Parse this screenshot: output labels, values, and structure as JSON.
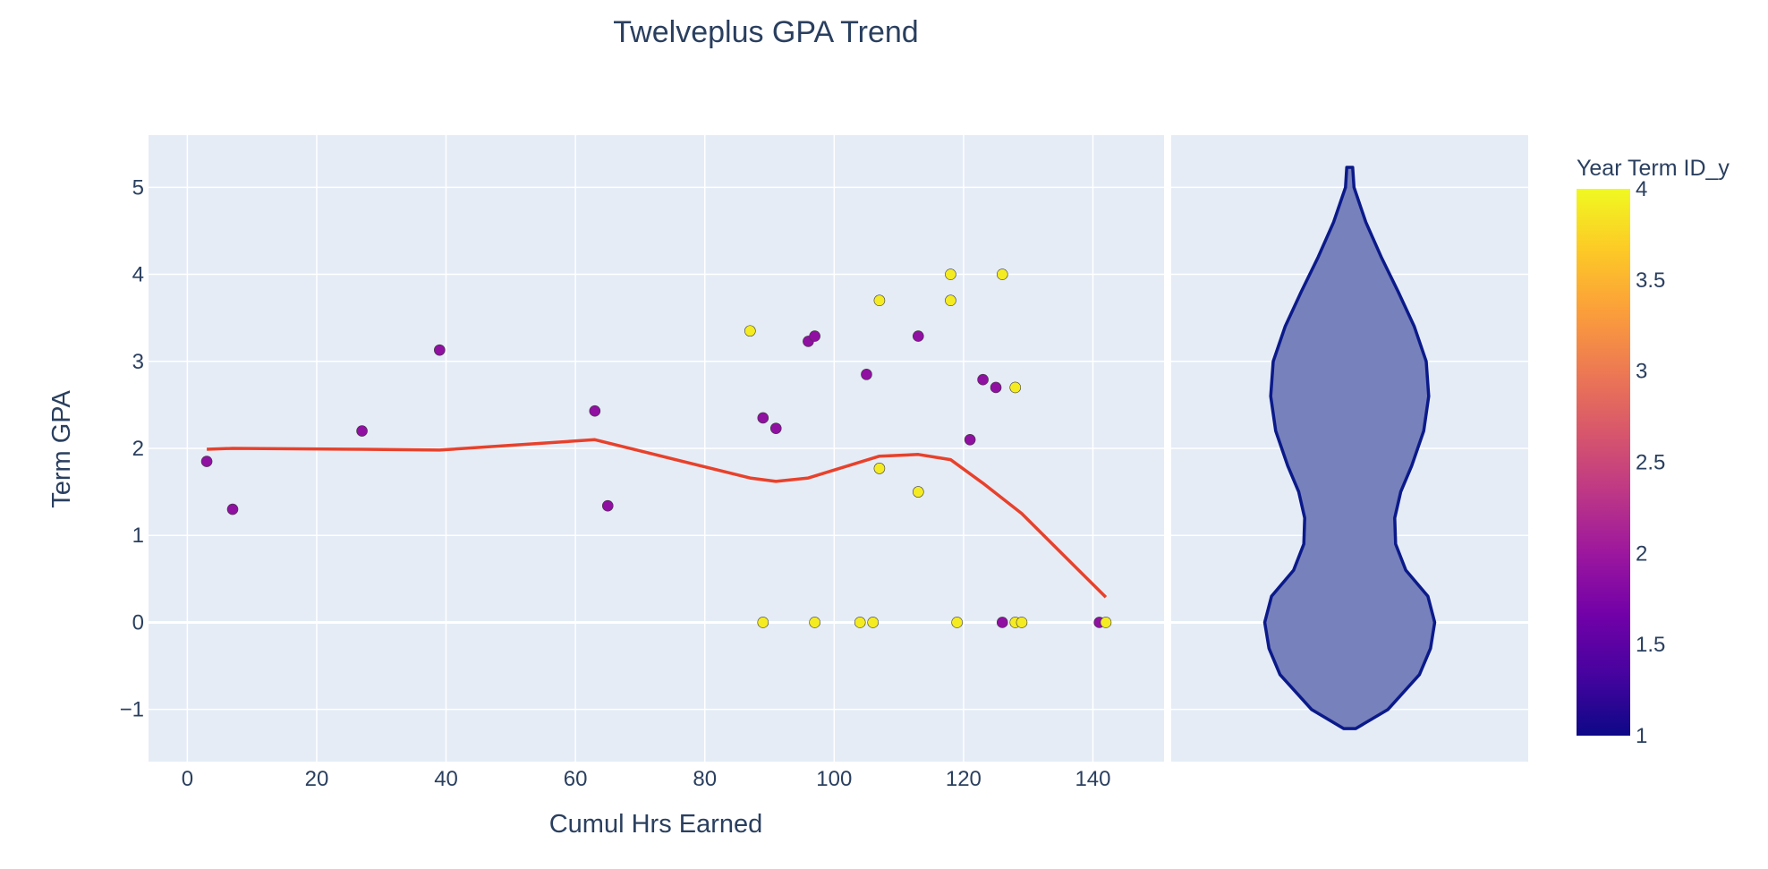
{
  "chart_data": {
    "type": "scatter",
    "title": "Twelveplus GPA Trend",
    "xlabel": "Cumul Hrs Earned",
    "ylabel": "Term GPA",
    "xlim": [
      -6,
      151
    ],
    "ylim": [
      -1.6,
      5.6
    ],
    "x_ticks": [
      0,
      20,
      40,
      60,
      80,
      100,
      120,
      140
    ],
    "y_ticks": [
      -1,
      0,
      1,
      2,
      3,
      4,
      5
    ],
    "x_tick_labels": [
      "0",
      "20",
      "40",
      "60",
      "80",
      "100",
      "120",
      "140"
    ],
    "y_tick_labels": [
      "−1",
      "0",
      "1",
      "2",
      "3",
      "4",
      "5"
    ],
    "grid": true,
    "points": [
      {
        "x": 3,
        "y": 1.85,
        "c": 1.9
      },
      {
        "x": 7,
        "y": 1.3,
        "c": 1.9
      },
      {
        "x": 27,
        "y": 2.2,
        "c": 1.9
      },
      {
        "x": 39,
        "y": 3.13,
        "c": 1.9
      },
      {
        "x": 63,
        "y": 2.43,
        "c": 1.9
      },
      {
        "x": 65,
        "y": 1.34,
        "c": 1.9
      },
      {
        "x": 87,
        "y": 3.35,
        "c": 3.9
      },
      {
        "x": 89,
        "y": 2.35,
        "c": 1.9
      },
      {
        "x": 91,
        "y": 2.23,
        "c": 1.9
      },
      {
        "x": 96,
        "y": 3.23,
        "c": 1.9
      },
      {
        "x": 97,
        "y": 3.29,
        "c": 1.9
      },
      {
        "x": 105,
        "y": 2.85,
        "c": 1.9
      },
      {
        "x": 107,
        "y": 3.7,
        "c": 3.9
      },
      {
        "x": 107,
        "y": 1.77,
        "c": 3.9
      },
      {
        "x": 113,
        "y": 3.29,
        "c": 1.9
      },
      {
        "x": 113,
        "y": 1.5,
        "c": 3.9
      },
      {
        "x": 118,
        "y": 4.0,
        "c": 3.9
      },
      {
        "x": 118,
        "y": 3.7,
        "c": 3.9
      },
      {
        "x": 121,
        "y": 2.1,
        "c": 1.9
      },
      {
        "x": 123,
        "y": 2.79,
        "c": 1.9
      },
      {
        "x": 125,
        "y": 2.7,
        "c": 1.9
      },
      {
        "x": 126,
        "y": 4.0,
        "c": 3.9
      },
      {
        "x": 128,
        "y": 2.7,
        "c": 3.9
      },
      {
        "x": 89,
        "y": 0,
        "c": 3.9
      },
      {
        "x": 97,
        "y": 0,
        "c": 3.9
      },
      {
        "x": 104,
        "y": 0,
        "c": 3.9
      },
      {
        "x": 106,
        "y": 0,
        "c": 3.9
      },
      {
        "x": 119,
        "y": 0,
        "c": 3.9
      },
      {
        "x": 126,
        "y": 0,
        "c": 1.9
      },
      {
        "x": 128,
        "y": 0,
        "c": 3.9
      },
      {
        "x": 129,
        "y": 0,
        "c": 3.9
      },
      {
        "x": 141,
        "y": 0,
        "c": 1.9
      },
      {
        "x": 142,
        "y": 0,
        "c": 3.9
      }
    ],
    "trend_line": {
      "color": "#e8412b",
      "x": [
        3,
        7,
        27,
        39,
        63,
        87,
        91,
        96,
        107,
        113,
        118,
        123,
        129,
        142
      ],
      "y": [
        1.99,
        2.0,
        1.99,
        1.98,
        2.1,
        1.66,
        1.62,
        1.66,
        1.91,
        1.93,
        1.87,
        1.6,
        1.25,
        0.29
      ]
    },
    "violin": {
      "fill": "#7781bb",
      "stroke": "#0b1a8a",
      "y_min": -1.22,
      "y_max": 5.23,
      "profile": [
        [
          -1.22,
          0.07
        ],
        [
          -1.0,
          0.45
        ],
        [
          -0.6,
          0.82
        ],
        [
          -0.3,
          0.95
        ],
        [
          0.0,
          1.0
        ],
        [
          0.3,
          0.92
        ],
        [
          0.6,
          0.66
        ],
        [
          0.9,
          0.54
        ],
        [
          1.2,
          0.53
        ],
        [
          1.5,
          0.6
        ],
        [
          1.8,
          0.73
        ],
        [
          2.2,
          0.87
        ],
        [
          2.6,
          0.93
        ],
        [
          3.0,
          0.9
        ],
        [
          3.4,
          0.76
        ],
        [
          3.8,
          0.57
        ],
        [
          4.2,
          0.37
        ],
        [
          4.6,
          0.19
        ],
        [
          5.0,
          0.05
        ],
        [
          5.23,
          0.035
        ]
      ]
    },
    "colorbar": {
      "title": "Year Term ID_y",
      "range": [
        1,
        4
      ],
      "ticks": [
        1,
        1.5,
        2,
        2.5,
        3,
        3.5,
        4
      ],
      "tick_labels": [
        "1",
        "1.5",
        "2",
        "2.5",
        "3",
        "3.5",
        "4"
      ],
      "colorscale": [
        "#0d0887",
        "#46039f",
        "#7201a8",
        "#9c179e",
        "#bd3786",
        "#d8576b",
        "#ed7953",
        "#fb9f3a",
        "#fdca26",
        "#f0f921"
      ]
    },
    "colors": {
      "plot_bg": "#e5ecf6",
      "grid": "#ffffff",
      "text": "#2a3f5f"
    }
  }
}
